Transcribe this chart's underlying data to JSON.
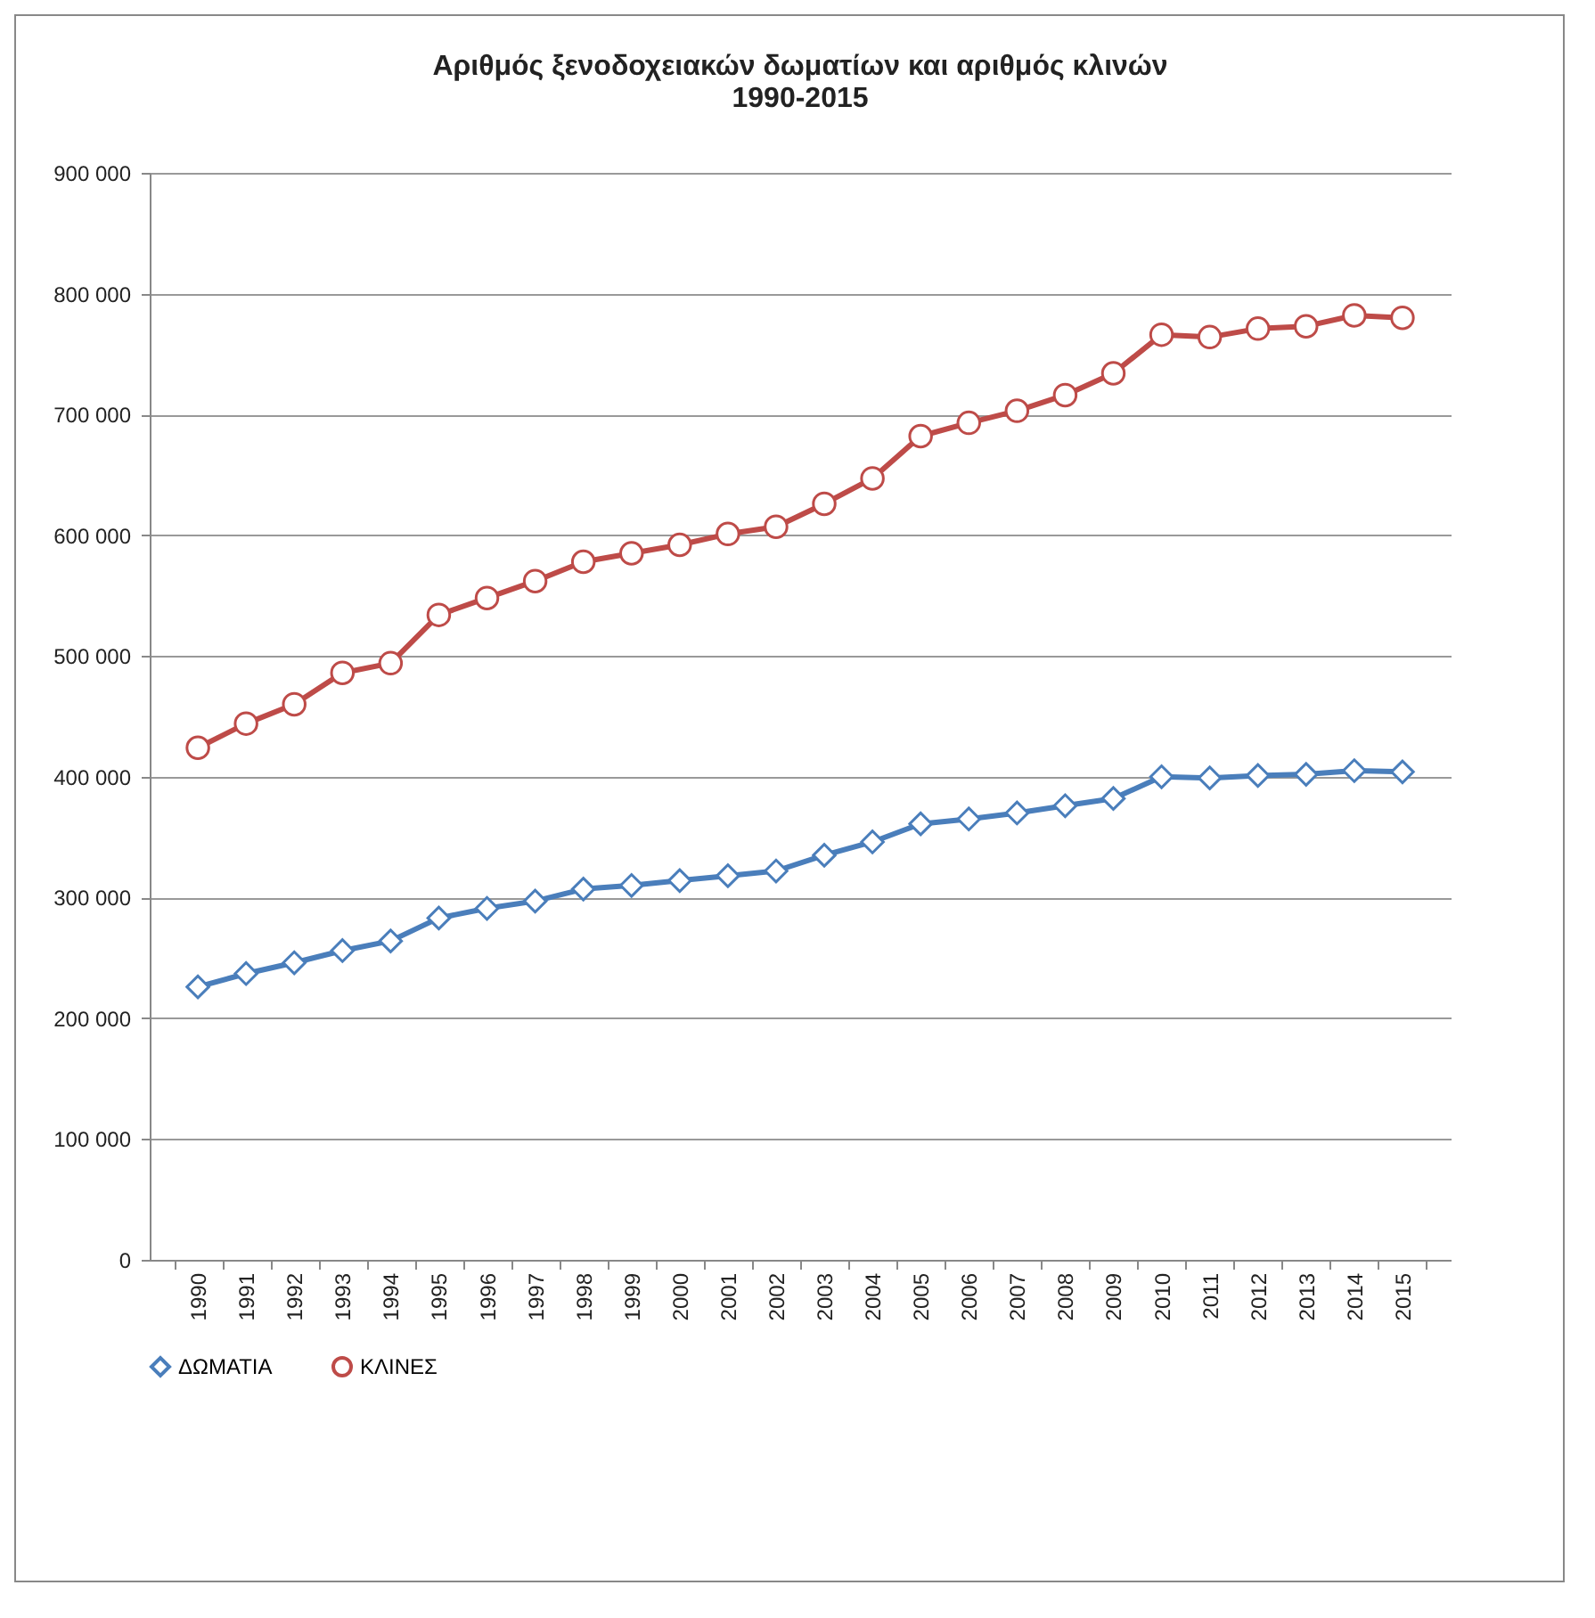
{
  "chart_data": {
    "type": "line",
    "title": "Αριθμός ξενοδοχειακών δωματίων και αριθμός κλινών\n1990-2015",
    "categories": [
      "1990",
      "1991",
      "1992",
      "1993",
      "1994",
      "1995",
      "1996",
      "1997",
      "1998",
      "1999",
      "2000",
      "2001",
      "2002",
      "2003",
      "2004",
      "2005",
      "2006",
      "2007",
      "2008",
      "2009",
      "2010",
      "2011",
      "2012",
      "2013",
      "2014",
      "2015"
    ],
    "series": [
      {
        "name": "ΔΩΜΑΤΙΑ",
        "color": "#4a7ebb",
        "marker": "diamond",
        "values": [
          226000,
          237000,
          246000,
          256000,
          264000,
          283000,
          291000,
          297000,
          307000,
          310000,
          314000,
          318000,
          322000,
          335000,
          346000,
          361000,
          365000,
          370000,
          376000,
          382000,
          400000,
          399000,
          401000,
          402000,
          405000,
          404000
        ]
      },
      {
        "name": "ΚΛΙΝΕΣ",
        "color": "#be4b48",
        "marker": "circle",
        "values": [
          424000,
          444000,
          460000,
          486000,
          494000,
          534000,
          548000,
          562000,
          578000,
          585000,
          592000,
          601000,
          607000,
          626000,
          647000,
          682000,
          693000,
          703000,
          716000,
          734000,
          766000,
          764000,
          771000,
          773000,
          782000,
          780000
        ]
      }
    ],
    "ylim": [
      0,
      900000
    ],
    "yticks": [
      0,
      {
        "value": 100000,
        "label": "100 000"
      },
      {
        "value": 200000,
        "label": "200 000"
      },
      {
        "value": 300000,
        "label": "300 000"
      },
      {
        "value": 400000,
        "label": "400 000"
      },
      {
        "value": 500000,
        "label": "500 000"
      },
      {
        "value": 600000,
        "label": "600 000"
      },
      {
        "value": 700000,
        "label": "700 000"
      },
      {
        "value": 800000,
        "label": "800 000"
      },
      {
        "value": 900000,
        "label": "900 000"
      }
    ],
    "grid": "y",
    "legend": "bottom",
    "line_style": "solid"
  }
}
